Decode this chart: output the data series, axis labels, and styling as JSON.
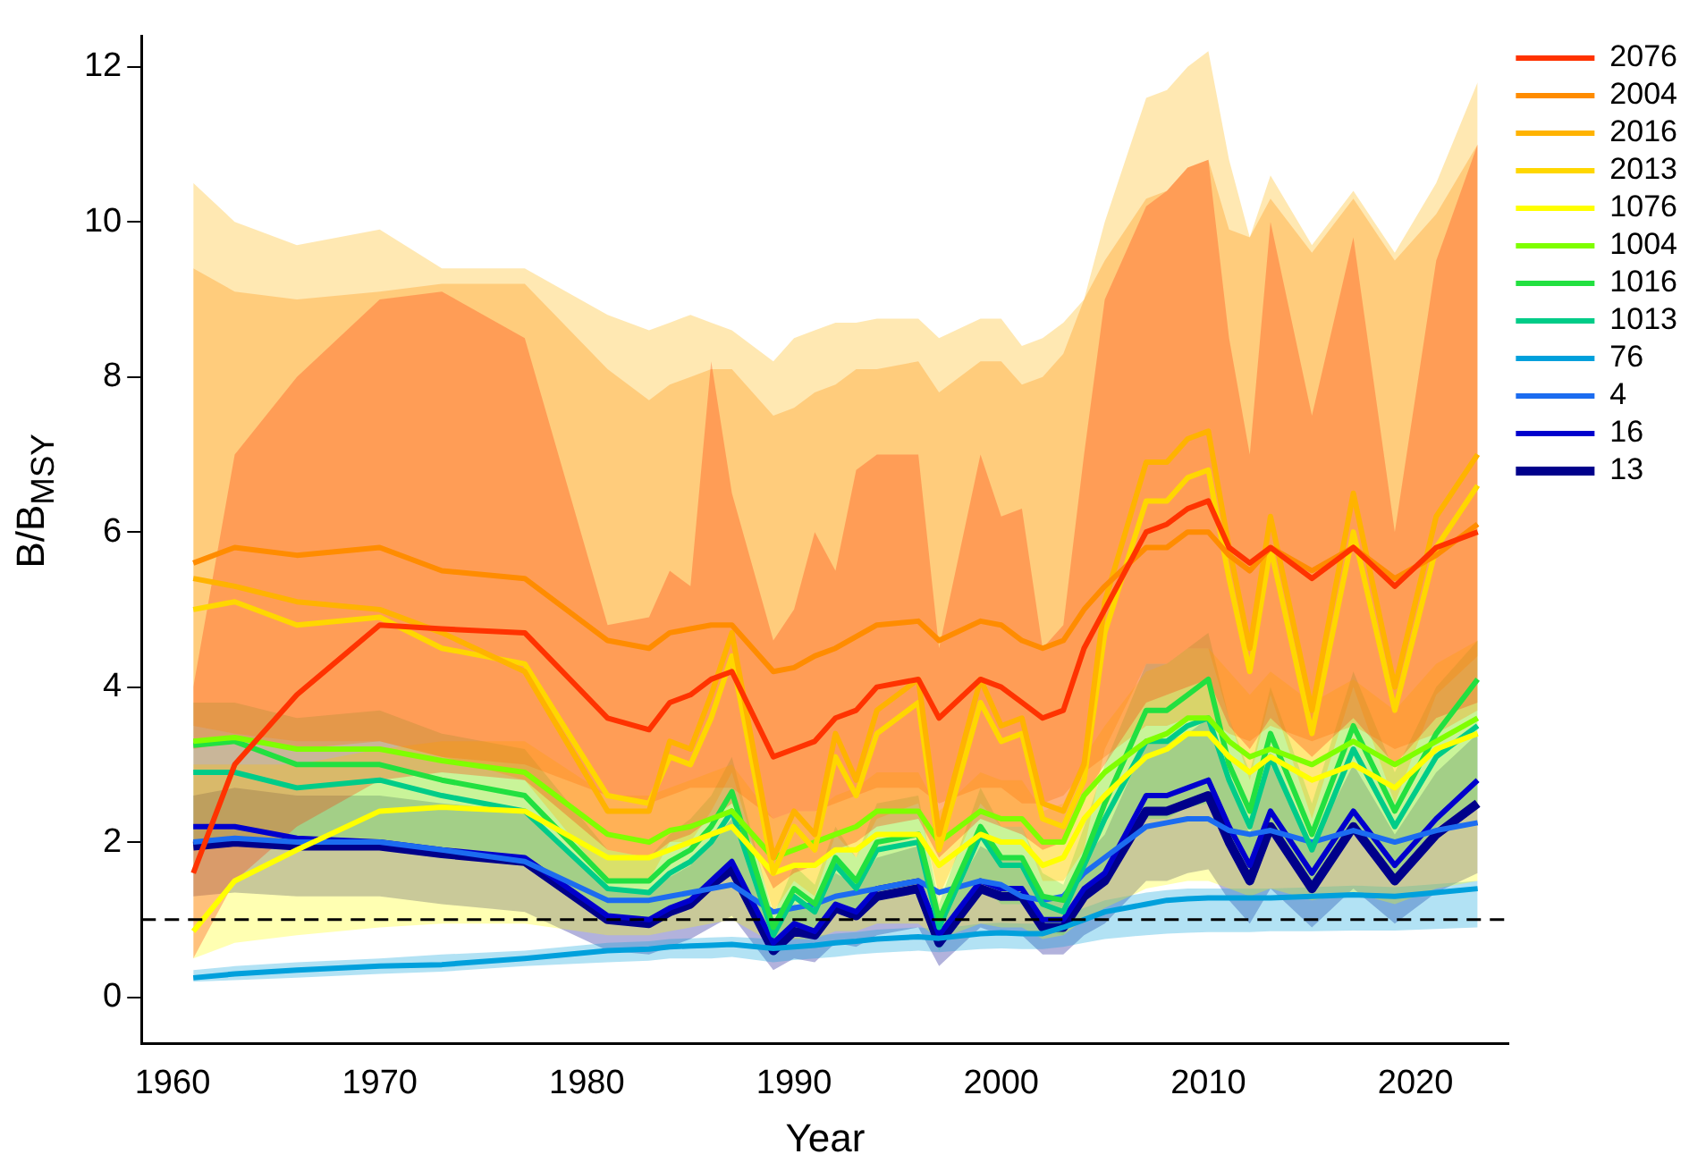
{
  "chart_data": {
    "type": "line",
    "xlabel": "Year",
    "ylabel": "B/B$_{MSY}$",
    "x": [
      1961,
      1963,
      1966,
      1970,
      1973,
      1977,
      1981,
      1983,
      1984,
      1985,
      1986,
      1987,
      1989,
      1990,
      1991,
      1992,
      1993,
      1994,
      1996,
      1997,
      1999,
      2000,
      2001,
      2002,
      2003,
      2004,
      2005,
      2007,
      2008,
      2009,
      2010,
      2011,
      2012,
      2013,
      2015,
      2017,
      2019,
      2021,
      2023
    ],
    "xlim": [
      1958.5,
      2024.5
    ],
    "xticks": [
      1960,
      1970,
      1980,
      1990,
      2000,
      2010,
      2020
    ],
    "ylim": [
      -0.6,
      12.4
    ],
    "yticks": [
      0,
      2,
      4,
      6,
      8,
      10,
      12
    ],
    "grid": false,
    "legend": "top right",
    "marker": "none",
    "line_style": "solid",
    "ref_lines": [
      {
        "axis": "y",
        "value": 1,
        "color": "#000000",
        "line_style": "dashed"
      }
    ],
    "series": [
      {
        "name": "13",
        "color": "#00008b",
        "values": [
          1.95,
          2.0,
          1.95,
          1.95,
          1.85,
          1.75,
          1.0,
          0.95,
          1.1,
          1.2,
          1.45,
          1.65,
          0.6,
          0.85,
          0.8,
          1.15,
          1.05,
          1.3,
          1.4,
          0.7,
          1.4,
          1.3,
          1.3,
          0.9,
          0.9,
          1.3,
          1.5,
          2.4,
          2.4,
          2.5,
          2.6,
          2.0,
          1.5,
          2.2,
          1.4,
          2.2,
          1.5,
          2.1,
          2.5
        ],
        "lower": [
          1.3,
          1.35,
          1.3,
          1.3,
          1.2,
          1.1,
          0.6,
          0.55,
          0.65,
          0.75,
          0.9,
          1.05,
          0.35,
          0.5,
          0.45,
          0.7,
          0.65,
          0.8,
          0.9,
          0.4,
          0.9,
          0.8,
          0.8,
          0.55,
          0.55,
          0.8,
          0.95,
          1.5,
          1.5,
          1.6,
          1.65,
          1.25,
          0.95,
          1.4,
          0.9,
          1.4,
          0.95,
          1.35,
          1.6
        ],
        "upper": [
          2.6,
          2.7,
          2.6,
          2.6,
          2.5,
          2.4,
          1.4,
          1.35,
          1.55,
          1.7,
          2.0,
          2.3,
          0.85,
          1.2,
          1.15,
          1.6,
          1.45,
          1.8,
          1.95,
          1.0,
          1.95,
          1.8,
          1.8,
          1.25,
          1.25,
          1.8,
          2.1,
          3.3,
          3.3,
          3.4,
          3.6,
          2.75,
          2.1,
          3.0,
          1.95,
          3.0,
          2.1,
          2.9,
          3.4
        ]
      },
      {
        "name": "16",
        "color": "#0000cd",
        "values": [
          2.2,
          2.2,
          2.05,
          2.0,
          1.9,
          1.8,
          1.05,
          1.0,
          1.15,
          1.25,
          1.5,
          1.75,
          0.7,
          0.95,
          0.85,
          1.2,
          1.1,
          1.4,
          1.5,
          0.8,
          1.5,
          1.4,
          1.4,
          1.0,
          1.0,
          1.4,
          1.6,
          2.6,
          2.6,
          2.7,
          2.8,
          2.2,
          1.7,
          2.4,
          1.6,
          2.4,
          1.7,
          2.3,
          2.8
        ]
      },
      {
        "name": "4",
        "color": "#1c6cf0",
        "values": [
          2.0,
          2.05,
          2.0,
          2.0,
          1.9,
          1.75,
          1.25,
          1.25,
          1.3,
          1.35,
          1.4,
          1.45,
          1.1,
          1.15,
          1.2,
          1.3,
          1.35,
          1.4,
          1.5,
          1.35,
          1.5,
          1.45,
          1.3,
          1.25,
          1.3,
          1.6,
          1.8,
          2.2,
          2.25,
          2.3,
          2.3,
          2.15,
          2.1,
          2.15,
          2.0,
          2.15,
          2.0,
          2.15,
          2.25
        ]
      },
      {
        "name": "76",
        "color": "#00a0dc",
        "values": [
          0.25,
          0.3,
          0.35,
          0.4,
          0.42,
          0.5,
          0.6,
          0.62,
          0.65,
          0.66,
          0.67,
          0.68,
          0.63,
          0.65,
          0.67,
          0.7,
          0.72,
          0.75,
          0.78,
          0.76,
          0.82,
          0.83,
          0.82,
          0.82,
          0.9,
          1.0,
          1.1,
          1.2,
          1.25,
          1.27,
          1.28,
          1.28,
          1.28,
          1.28,
          1.3,
          1.32,
          1.3,
          1.35,
          1.4
        ],
        "lower": [
          0.2,
          0.22,
          0.25,
          0.3,
          0.33,
          0.4,
          0.45,
          0.47,
          0.5,
          0.5,
          0.5,
          0.52,
          0.45,
          0.48,
          0.5,
          0.52,
          0.55,
          0.57,
          0.6,
          0.58,
          0.62,
          0.63,
          0.62,
          0.62,
          0.65,
          0.7,
          0.75,
          0.8,
          0.82,
          0.83,
          0.84,
          0.84,
          0.84,
          0.85,
          0.85,
          0.86,
          0.86,
          0.88,
          0.9
        ],
        "upper": [
          0.35,
          0.4,
          0.45,
          0.5,
          0.55,
          0.6,
          0.7,
          0.72,
          0.75,
          0.76,
          0.77,
          0.78,
          0.75,
          0.77,
          0.79,
          0.82,
          0.84,
          0.87,
          0.9,
          0.88,
          0.95,
          0.96,
          0.95,
          0.95,
          1.05,
          1.15,
          1.25,
          1.35,
          1.38,
          1.4,
          1.4,
          1.4,
          1.4,
          1.4,
          1.42,
          1.44,
          1.42,
          1.46,
          1.5
        ]
      },
      {
        "name": "1013",
        "color": "#00cc88",
        "values": [
          2.9,
          2.9,
          2.7,
          2.8,
          2.6,
          2.4,
          1.4,
          1.35,
          1.6,
          1.75,
          2.0,
          2.4,
          0.8,
          1.3,
          1.1,
          1.7,
          1.4,
          1.9,
          2.0,
          0.9,
          2.1,
          1.7,
          1.7,
          1.2,
          1.1,
          1.7,
          2.3,
          3.3,
          3.3,
          3.5,
          3.6,
          2.8,
          2.2,
          3.1,
          1.9,
          3.2,
          2.2,
          3.1,
          3.5
        ],
        "lower": [
          2.0,
          2.0,
          1.9,
          1.95,
          1.8,
          1.7,
          1.0,
          0.95,
          1.1,
          1.2,
          1.4,
          1.7,
          0.55,
          0.9,
          0.75,
          1.2,
          1.0,
          1.3,
          1.4,
          0.6,
          1.45,
          1.2,
          1.2,
          0.85,
          0.8,
          1.2,
          1.6,
          2.3,
          2.3,
          2.45,
          2.5,
          1.95,
          1.55,
          2.2,
          1.35,
          2.25,
          1.55,
          2.2,
          2.45
        ],
        "upper": [
          3.8,
          3.8,
          3.6,
          3.7,
          3.4,
          3.2,
          1.9,
          1.8,
          2.1,
          2.3,
          2.6,
          3.1,
          1.05,
          1.7,
          1.45,
          2.2,
          1.8,
          2.5,
          2.6,
          1.2,
          2.7,
          2.2,
          2.2,
          1.6,
          1.45,
          2.2,
          3.0,
          4.3,
          4.3,
          4.5,
          4.7,
          3.6,
          2.9,
          4.0,
          2.5,
          4.2,
          2.9,
          4.0,
          4.6
        ]
      },
      {
        "name": "1016",
        "color": "#22e040",
        "values": [
          3.25,
          3.3,
          3.0,
          3.0,
          2.8,
          2.6,
          1.5,
          1.5,
          1.75,
          1.9,
          2.2,
          2.65,
          0.9,
          1.4,
          1.2,
          1.8,
          1.5,
          2.0,
          2.1,
          1.0,
          2.2,
          1.8,
          1.8,
          1.3,
          1.25,
          1.8,
          2.5,
          3.7,
          3.7,
          3.9,
          4.1,
          3.0,
          2.4,
          3.4,
          2.1,
          3.5,
          2.4,
          3.4,
          4.1
        ]
      },
      {
        "name": "1004",
        "color": "#7fff00",
        "values": [
          3.3,
          3.35,
          3.2,
          3.2,
          3.05,
          2.9,
          2.1,
          2.0,
          2.15,
          2.2,
          2.3,
          2.4,
          1.8,
          1.9,
          2.0,
          2.1,
          2.2,
          2.4,
          2.4,
          2.0,
          2.4,
          2.3,
          2.3,
          2.0,
          2.0,
          2.6,
          2.9,
          3.3,
          3.4,
          3.6,
          3.6,
          3.3,
          3.1,
          3.2,
          3.0,
          3.3,
          3.0,
          3.3,
          3.6
        ]
      },
      {
        "name": "1076",
        "color": "#ffff00",
        "values": [
          0.85,
          1.5,
          1.9,
          2.4,
          2.45,
          2.4,
          1.8,
          1.8,
          1.9,
          2.0,
          2.1,
          2.2,
          1.6,
          1.7,
          1.7,
          1.9,
          1.9,
          2.1,
          2.1,
          1.7,
          2.1,
          2.0,
          2.0,
          1.7,
          1.8,
          2.3,
          2.6,
          3.1,
          3.2,
          3.4,
          3.4,
          3.1,
          2.9,
          3.1,
          2.8,
          3.0,
          2.7,
          3.2,
          3.4
        ],
        "lower": [
          0.5,
          0.7,
          0.8,
          0.9,
          0.95,
          0.95,
          0.8,
          0.8,
          0.85,
          0.9,
          0.95,
          1.0,
          0.7,
          0.75,
          0.75,
          0.85,
          0.85,
          0.95,
          0.95,
          0.75,
          0.95,
          0.9,
          0.9,
          0.75,
          0.8,
          1.0,
          1.15,
          1.4,
          1.45,
          1.5,
          1.5,
          1.4,
          1.3,
          1.4,
          1.25,
          1.35,
          1.2,
          1.4,
          1.5
        ],
        "upper": [
          3.0,
          3.0,
          3.0,
          3.2,
          3.3,
          3.3,
          2.6,
          2.6,
          2.7,
          2.8,
          2.9,
          3.0,
          2.3,
          2.4,
          2.4,
          2.6,
          2.7,
          2.9,
          2.9,
          2.4,
          2.9,
          2.8,
          2.8,
          2.4,
          2.5,
          3.1,
          3.5,
          4.2,
          4.3,
          4.5,
          4.5,
          4.2,
          3.9,
          4.2,
          3.8,
          4.1,
          3.7,
          4.3,
          4.6
        ]
      },
      {
        "name": "2013",
        "color": "#ffd700",
        "values": [
          5.0,
          5.1,
          4.8,
          4.9,
          4.5,
          4.3,
          2.6,
          2.5,
          3.1,
          3.0,
          3.6,
          4.4,
          1.6,
          2.2,
          1.9,
          3.1,
          2.6,
          3.4,
          3.8,
          1.9,
          3.8,
          3.3,
          3.4,
          2.3,
          2.2,
          2.8,
          4.7,
          6.4,
          6.4,
          6.7,
          6.8,
          5.4,
          4.2,
          5.8,
          3.4,
          6.0,
          3.7,
          5.8,
          6.6
        ]
      },
      {
        "name": "2016",
        "color": "#ffb300",
        "values": [
          5.4,
          5.3,
          5.1,
          5.0,
          4.7,
          4.2,
          2.4,
          2.4,
          3.3,
          3.2,
          3.9,
          4.7,
          1.8,
          2.4,
          2.1,
          3.4,
          2.8,
          3.7,
          4.1,
          2.1,
          4.1,
          3.5,
          3.6,
          2.5,
          2.4,
          3.0,
          5.1,
          6.9,
          6.9,
          7.2,
          7.3,
          5.8,
          4.5,
          6.2,
          3.7,
          6.5,
          4.0,
          6.2,
          7.0
        ],
        "lower": [
          3.5,
          3.4,
          3.3,
          3.3,
          3.1,
          2.8,
          1.5,
          1.5,
          2.0,
          2.0,
          2.4,
          2.9,
          1.1,
          1.5,
          1.3,
          2.1,
          1.8,
          2.3,
          2.5,
          1.3,
          2.5,
          2.2,
          2.2,
          1.5,
          1.5,
          1.9,
          3.2,
          4.3,
          4.3,
          4.5,
          4.5,
          3.6,
          2.8,
          3.9,
          2.3,
          4.0,
          2.5,
          3.9,
          4.4
        ],
        "upper": [
          10.5,
          10.0,
          9.7,
          9.9,
          9.4,
          9.4,
          8.8,
          8.6,
          8.7,
          8.8,
          8.7,
          8.6,
          8.2,
          8.5,
          8.6,
          8.7,
          8.7,
          8.75,
          8.75,
          8.5,
          8.75,
          8.75,
          8.4,
          8.5,
          8.7,
          9.0,
          10.0,
          11.6,
          11.7,
          12.0,
          12.2,
          10.8,
          9.8,
          10.6,
          9.7,
          10.4,
          9.6,
          10.5,
          11.8
        ]
      },
      {
        "name": "2004",
        "color": "#ff8c00",
        "values": [
          5.6,
          5.8,
          5.7,
          5.8,
          5.5,
          5.4,
          4.6,
          4.5,
          4.7,
          4.75,
          4.8,
          4.8,
          4.2,
          4.25,
          4.4,
          4.5,
          4.65,
          4.8,
          4.85,
          4.6,
          4.85,
          4.8,
          4.6,
          4.5,
          4.6,
          5.0,
          5.3,
          5.8,
          5.8,
          6.0,
          6.0,
          5.7,
          5.5,
          5.8,
          5.5,
          5.8,
          5.4,
          5.7,
          6.1
        ],
        "lower": [
          3.2,
          3.3,
          3.2,
          3.3,
          3.1,
          3.0,
          2.6,
          2.5,
          2.6,
          2.7,
          2.7,
          2.7,
          2.3,
          2.4,
          2.4,
          2.5,
          2.6,
          2.7,
          2.7,
          2.5,
          2.7,
          2.7,
          2.5,
          2.5,
          2.6,
          2.9,
          3.1,
          3.5,
          3.5,
          3.6,
          3.6,
          3.4,
          3.3,
          3.5,
          3.3,
          3.5,
          3.2,
          3.4,
          3.7
        ],
        "upper": [
          9.4,
          9.1,
          9.0,
          9.1,
          9.2,
          9.2,
          8.1,
          7.7,
          7.9,
          8.0,
          8.1,
          8.1,
          7.5,
          7.6,
          7.8,
          7.9,
          8.1,
          8.1,
          8.2,
          7.8,
          8.2,
          8.2,
          7.9,
          8.0,
          8.3,
          9.0,
          9.5,
          10.3,
          10.4,
          10.7,
          10.8,
          9.9,
          9.8,
          10.3,
          9.6,
          10.3,
          9.5,
          10.1,
          11.0
        ]
      },
      {
        "name": "2076",
        "color": "#ff3300",
        "values": [
          1.6,
          3.0,
          3.9,
          4.8,
          4.75,
          4.7,
          3.6,
          3.45,
          3.8,
          3.9,
          4.1,
          4.2,
          3.1,
          3.2,
          3.3,
          3.6,
          3.7,
          4.0,
          4.1,
          3.6,
          4.1,
          4.0,
          3.8,
          3.6,
          3.7,
          4.5,
          5.0,
          6.0,
          6.1,
          6.3,
          6.4,
          5.8,
          5.6,
          5.8,
          5.4,
          5.8,
          5.3,
          5.8,
          6.0
        ],
        "lower": [
          0.5,
          1.5,
          2.2,
          2.8,
          2.9,
          2.8,
          1.9,
          1.8,
          2.0,
          2.1,
          2.3,
          2.5,
          1.4,
          1.6,
          1.7,
          1.9,
          2.0,
          2.2,
          2.3,
          1.8,
          2.3,
          2.2,
          2.1,
          1.9,
          2.0,
          2.6,
          3.0,
          3.8,
          3.9,
          4.0,
          4.1,
          3.5,
          3.2,
          3.6,
          3.1,
          3.6,
          3.0,
          3.6,
          3.8
        ],
        "upper": [
          4.0,
          7.0,
          8.0,
          9.0,
          9.1,
          8.5,
          4.8,
          4.9,
          5.5,
          5.3,
          8.2,
          6.5,
          4.6,
          5.0,
          6.0,
          5.5,
          6.8,
          7.0,
          7.0,
          4.5,
          7.0,
          6.2,
          6.3,
          4.5,
          4.8,
          7.0,
          9.0,
          10.2,
          10.4,
          10.7,
          10.8,
          8.5,
          7.0,
          10.0,
          7.5,
          9.8,
          6.0,
          9.5,
          11.0
        ]
      }
    ]
  }
}
